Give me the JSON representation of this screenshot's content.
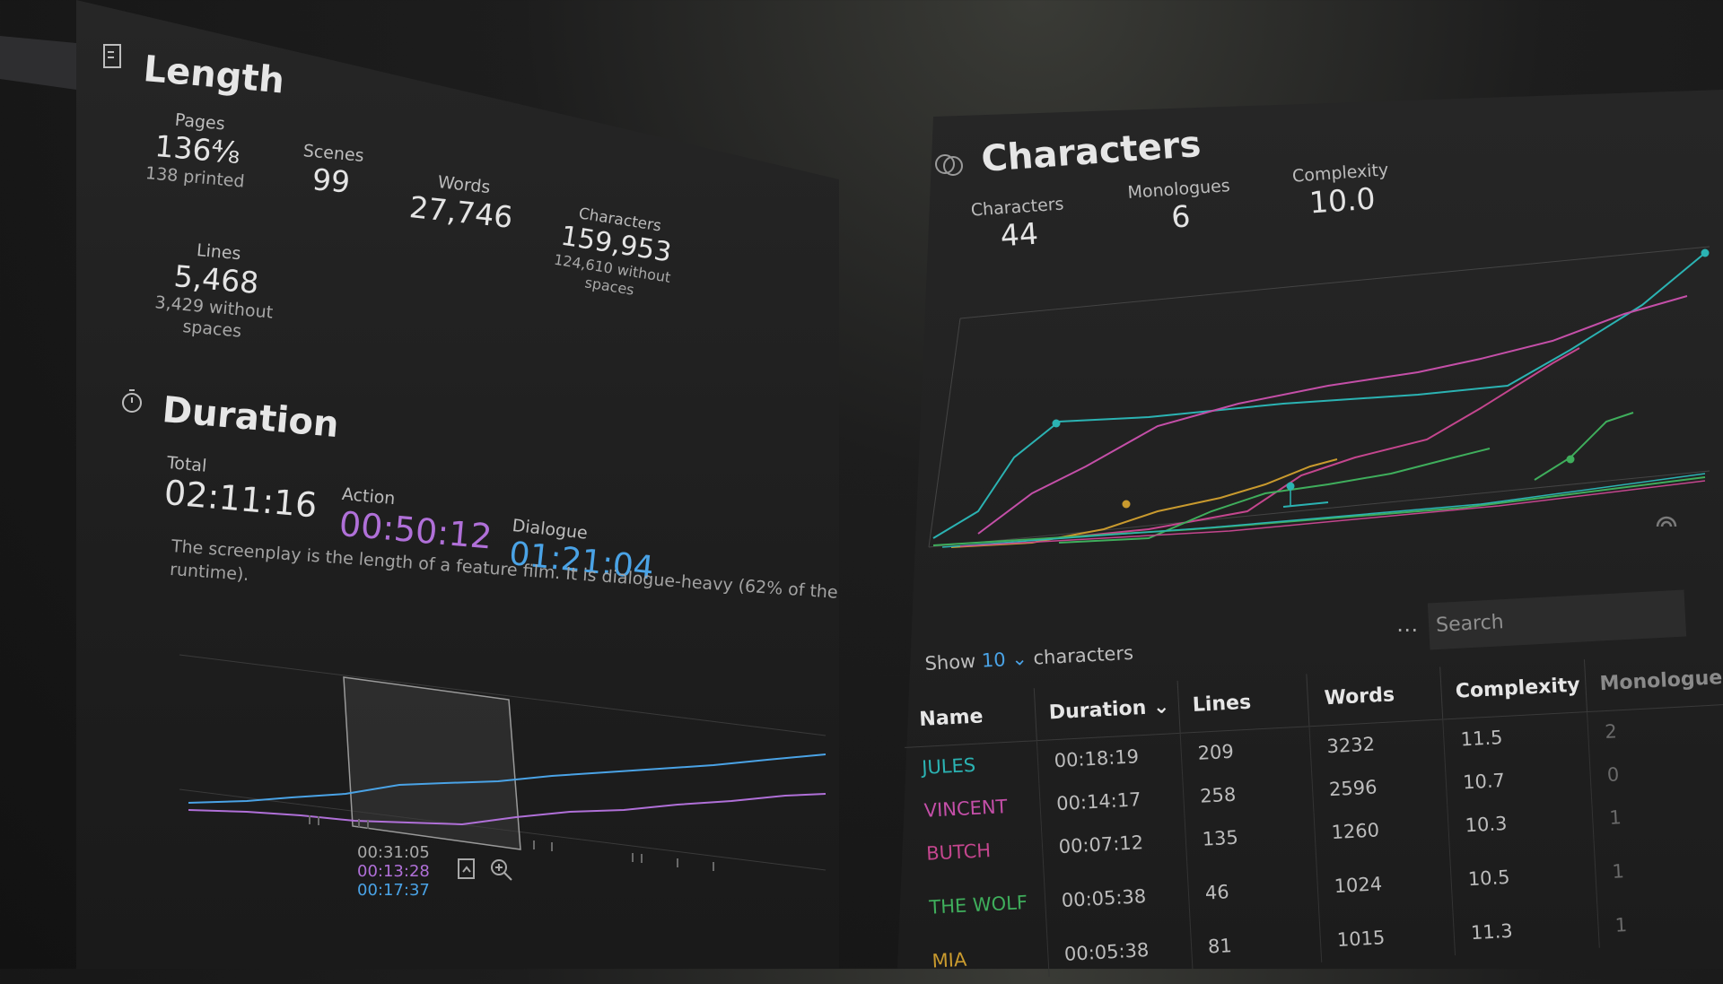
{
  "length": {
    "title": "Length",
    "pages_label": "Pages",
    "pages_value": "136⁴⁄₈",
    "pages_sub": "138 printed",
    "scenes_label": "Scenes",
    "scenes_value": "99",
    "words_label": "Words",
    "words_value": "27,746",
    "characters_label": "Characters",
    "characters_value": "159,953",
    "characters_sub1": "124,610 without",
    "characters_sub2": "spaces",
    "lines_label": "Lines",
    "lines_value": "5,468",
    "lines_sub1": "3,429 without",
    "lines_sub2": "spaces"
  },
  "duration": {
    "title": "Duration",
    "total_label": "Total",
    "total_value": "02:11:16",
    "action_label": "Action",
    "action_value": "00:50:12",
    "dialogue_label": "Dialogue",
    "dialogue_value": "01:21:04",
    "description_line1": "The screenplay is the length of a feature film. It is dialogue-heavy (62% of the",
    "description_line2": "runtime).",
    "selection_total": "00:31:05",
    "selection_action": "00:13:28",
    "selection_dialogue": "00:17:37",
    "colors": {
      "action": "#b070d8",
      "dialogue": "#4aa3e6"
    }
  },
  "characters": {
    "title": "Characters",
    "characters_label": "Characters",
    "characters_value": "44",
    "monologues_label": "Monologues",
    "monologues_value": "6",
    "complexity_label": "Complexity",
    "complexity_value": "10.0",
    "show_label": "Show",
    "show_count": "10",
    "show_suffix": "characters",
    "more_label": "⋯",
    "search_placeholder": "Search",
    "table": {
      "headers": [
        "Name",
        "Duration",
        "Lines",
        "Words",
        "Complexity",
        "Monologue"
      ],
      "rows": [
        {
          "name": "JULES",
          "duration": "00:18:19",
          "lines": "209",
          "words": "3232",
          "complexity": "11.5",
          "monologues": "2",
          "color": "#2bb3b3"
        },
        {
          "name": "VINCENT",
          "duration": "00:14:17",
          "lines": "258",
          "words": "2596",
          "complexity": "10.7",
          "monologues": "0",
          "color": "#c44fa8"
        },
        {
          "name": "BUTCH",
          "duration": "00:07:12",
          "lines": "135",
          "words": "1260",
          "complexity": "10.3",
          "monologues": "1",
          "color": "#c4468e"
        },
        {
          "name": "THE WOLF",
          "duration": "00:05:38",
          "lines": "46",
          "words": "1024",
          "complexity": "10.5",
          "monologues": "1",
          "color": "#3fae5c"
        },
        {
          "name": "MIA",
          "duration": "00:05:38",
          "lines": "81",
          "words": "1015",
          "complexity": "11.3",
          "monologues": "1",
          "color": "#c99a2e"
        }
      ]
    }
  }
}
